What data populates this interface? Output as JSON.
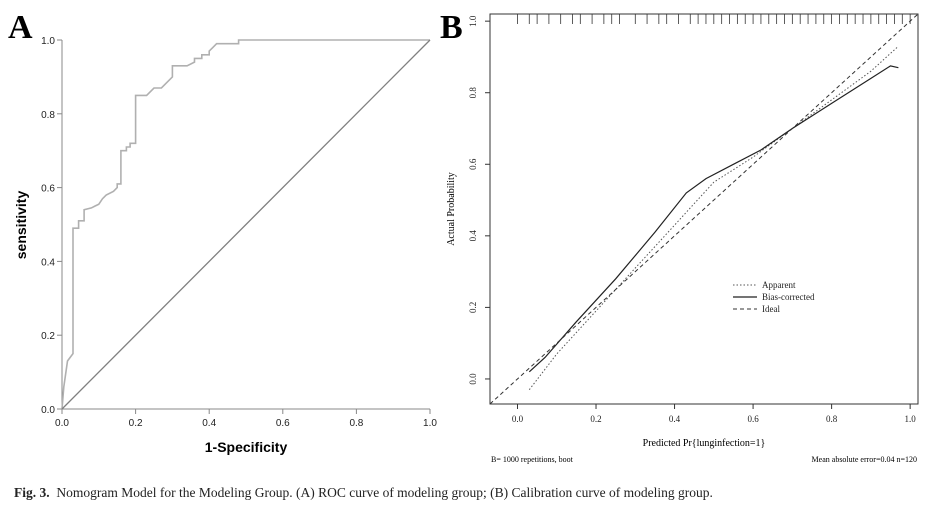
{
  "chart_data": [
    {
      "type": "line",
      "panel": "A",
      "title": "",
      "xlabel": "1-Specificity",
      "ylabel": "sensitivity",
      "xlim": [
        0,
        1
      ],
      "ylim": [
        0,
        1
      ],
      "xticks": [
        "0.0",
        "0.2",
        "0.4",
        "0.6",
        "0.8",
        "1.0"
      ],
      "yticks": [
        "0.0",
        "0.2",
        "0.4",
        "0.6",
        "0.8",
        "1.0"
      ],
      "series": [
        {
          "name": "ROC",
          "color": "#b0b0b0",
          "x": [
            0,
            0.005,
            0.015,
            0.03,
            0.03,
            0.045,
            0.045,
            0.06,
            0.06,
            0.08,
            0.09,
            0.1,
            0.11,
            0.12,
            0.14,
            0.15,
            0.15,
            0.16,
            0.16,
            0.175,
            0.175,
            0.185,
            0.185,
            0.2,
            0.2,
            0.23,
            0.25,
            0.27,
            0.3,
            0.3,
            0.34,
            0.36,
            0.36,
            0.38,
            0.38,
            0.4,
            0.4,
            0.41,
            0.42,
            0.44,
            0.48,
            0.48,
            1.0
          ],
          "y": [
            0,
            0.06,
            0.13,
            0.15,
            0.49,
            0.49,
            0.51,
            0.51,
            0.54,
            0.545,
            0.55,
            0.555,
            0.57,
            0.58,
            0.59,
            0.6,
            0.61,
            0.61,
            0.7,
            0.7,
            0.71,
            0.71,
            0.72,
            0.72,
            0.85,
            0.85,
            0.87,
            0.87,
            0.9,
            0.93,
            0.93,
            0.94,
            0.95,
            0.95,
            0.96,
            0.96,
            0.97,
            0.98,
            0.99,
            0.99,
            0.99,
            1.0,
            1.0
          ]
        },
        {
          "name": "Reference",
          "color": "#808080",
          "x": [
            0,
            1
          ],
          "y": [
            0,
            1
          ]
        }
      ]
    },
    {
      "type": "line",
      "panel": "B",
      "title": "",
      "xlabel": "Predicted Pr{lunginfection=1}",
      "ylabel": "Actual Probability",
      "xlim": [
        -0.07,
        1.02
      ],
      "ylim": [
        -0.07,
        1.02
      ],
      "xticks": [
        "0.0",
        "0.2",
        "0.4",
        "0.6",
        "0.8",
        "1.0"
      ],
      "yticks": [
        "0.0",
        "0.2",
        "0.4",
        "0.6",
        "0.8",
        "1.0"
      ],
      "legend": [
        "Apparent",
        "Bias-corrected",
        "Ideal"
      ],
      "legend_position": "center-right",
      "footnote_left": "B= 1000 repetitions, boot",
      "footnote_right": "Mean absolute error=0.04 n=120",
      "rug": [
        0.0,
        0.03,
        0.05,
        0.08,
        0.11,
        0.14,
        0.16,
        0.19,
        0.22,
        0.24,
        0.26,
        0.3,
        0.33,
        0.36,
        0.38,
        0.41,
        0.44,
        0.46,
        0.48,
        0.5,
        0.52,
        0.54,
        0.56,
        0.58,
        0.6,
        0.62,
        0.64,
        0.66,
        0.68,
        0.7,
        0.72,
        0.74,
        0.76,
        0.78,
        0.8,
        0.82,
        0.84,
        0.86,
        0.88,
        0.9,
        0.92,
        0.94,
        0.96,
        0.98,
        1.0
      ],
      "series": [
        {
          "name": "Apparent",
          "style": "dotted",
          "x": [
            0.03,
            0.1,
            0.2,
            0.3,
            0.4,
            0.45,
            0.5,
            0.6,
            0.7,
            0.8,
            0.9,
            0.97
          ],
          "y": [
            -0.03,
            0.07,
            0.19,
            0.31,
            0.43,
            0.49,
            0.55,
            0.62,
            0.7,
            0.78,
            0.86,
            0.93
          ]
        },
        {
          "name": "Bias-corrected",
          "style": "solid",
          "x": [
            0.03,
            0.07,
            0.15,
            0.25,
            0.35,
            0.43,
            0.48,
            0.55,
            0.62,
            0.7,
            0.8,
            0.9,
            0.95,
            0.97
          ],
          "y": [
            0.02,
            0.06,
            0.16,
            0.28,
            0.41,
            0.52,
            0.56,
            0.6,
            0.64,
            0.7,
            0.77,
            0.84,
            0.875,
            0.87
          ]
        },
        {
          "name": "Ideal",
          "style": "dashed",
          "x": [
            -0.07,
            1.02
          ],
          "y": [
            -0.07,
            1.02
          ]
        }
      ]
    }
  ],
  "panel_labels": [
    "A",
    "B"
  ],
  "caption": {
    "prefix": "Fig. 3.",
    "text": "Nomogram Model for the Modeling Group. (A) ROC curve of modeling group; (B) Calibration curve of modeling group."
  }
}
